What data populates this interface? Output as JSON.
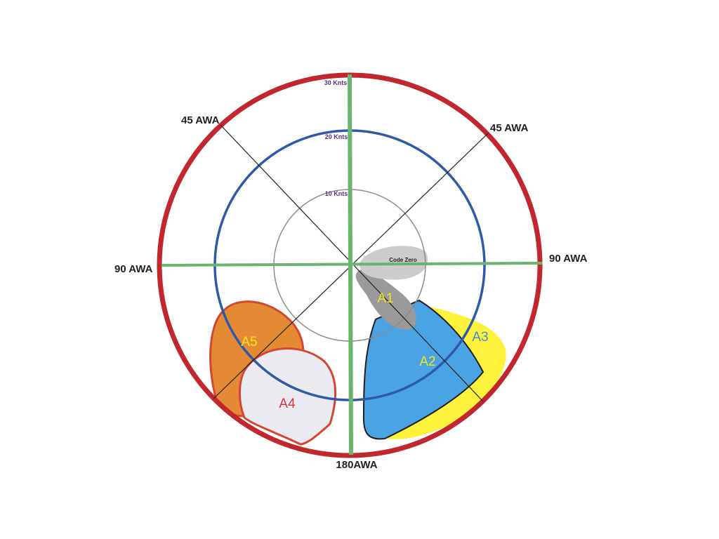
{
  "colors": {
    "outer_ring": "#c1272d",
    "ring_20": "#2e5aa8",
    "ring_10": "#8c8c8c",
    "axis": "#6ab56b",
    "diagonal": "#231f20",
    "code_zero": "#cccccc",
    "a1": "#9a9a9a",
    "a2": "#4aa3e3",
    "a3": "#fff23d",
    "a4": "#ebeaf0",
    "a5": "#e58a34",
    "a4_a5_edge": "#d2482e",
    "label_yellow": "#f5e51c",
    "label_blue": "#3d8fd1",
    "label_red": "#d2343a",
    "knot_text": "#5b2d86"
  },
  "wind_speed_rings": {
    "outer": "30 Knts",
    "middle": "20 Knts",
    "inner": "10 Knts"
  },
  "angle_labels": {
    "top_left": "45 AWA",
    "top_right": "45 AWA",
    "left": "90 AWA",
    "right": "90 AWA",
    "bottom": "180AWA"
  },
  "sails": {
    "code_zero": "Code Zero",
    "a1": "A1",
    "a2": "A2",
    "a3": "A3",
    "a4": "A4",
    "a5": "A5"
  }
}
